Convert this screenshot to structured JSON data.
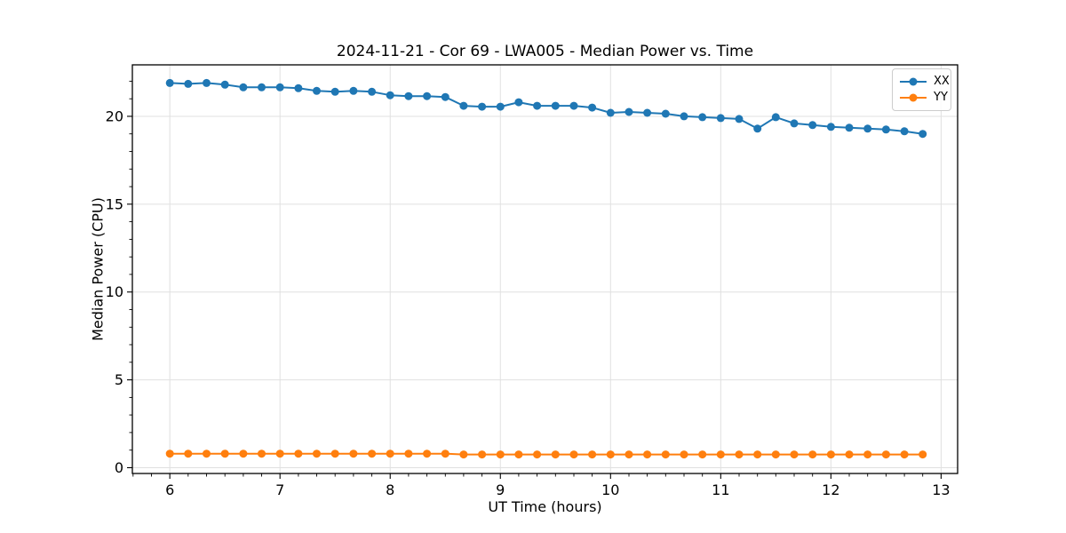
{
  "window": {
    "background": "#ffffff"
  },
  "chart_data": {
    "type": "line",
    "title": "2024-11-21 - Cor 69 - LWA005 - Median Power vs. Time",
    "xlabel": "UT Time (hours)",
    "ylabel": "Median Power (CPU)",
    "xlim": [
      5.66,
      13.15
    ],
    "ylim": [
      -0.33,
      22.93
    ],
    "xticks": [
      6,
      7,
      8,
      9,
      10,
      11,
      12,
      13
    ],
    "yticks": [
      0,
      5,
      10,
      15,
      20
    ],
    "minor_x_step": 0.166667,
    "minor_y_step": 1,
    "grid": true,
    "grid_color": "#e0e0e0",
    "legend_position": "upper right",
    "x": [
      6.0,
      6.1667,
      6.3333,
      6.5,
      6.6667,
      6.8333,
      7.0,
      7.1667,
      7.3333,
      7.5,
      7.6667,
      7.8333,
      8.0,
      8.1667,
      8.3333,
      8.5,
      8.6667,
      8.8333,
      9.0,
      9.1667,
      9.3333,
      9.5,
      9.6667,
      9.8333,
      10.0,
      10.1667,
      10.3333,
      10.5,
      10.6667,
      10.8333,
      11.0,
      11.1667,
      11.3333,
      11.5,
      11.6667,
      11.8333,
      12.0,
      12.1667,
      12.3333,
      12.5,
      12.6667,
      12.8333
    ],
    "series": [
      {
        "name": "XX",
        "color": "#1f77b4",
        "values": [
          21.9,
          21.85,
          21.9,
          21.8,
          21.65,
          21.65,
          21.65,
          21.6,
          21.45,
          21.4,
          21.45,
          21.4,
          21.2,
          21.15,
          21.15,
          21.1,
          20.6,
          20.55,
          20.55,
          20.8,
          20.6,
          20.6,
          20.6,
          20.5,
          20.2,
          20.25,
          20.2,
          20.15,
          20.0,
          19.95,
          19.9,
          19.85,
          19.3,
          19.95,
          19.6,
          19.5,
          19.4,
          19.35,
          19.3,
          19.25,
          19.15,
          19.0
        ]
      },
      {
        "name": "YY",
        "color": "#ff7f0e",
        "values": [
          0.8,
          0.8,
          0.8,
          0.8,
          0.8,
          0.8,
          0.8,
          0.8,
          0.8,
          0.8,
          0.8,
          0.8,
          0.8,
          0.8,
          0.8,
          0.8,
          0.75,
          0.75,
          0.75,
          0.75,
          0.75,
          0.75,
          0.75,
          0.75,
          0.75,
          0.75,
          0.75,
          0.75,
          0.75,
          0.75,
          0.75,
          0.75,
          0.75,
          0.75,
          0.75,
          0.75,
          0.75,
          0.75,
          0.75,
          0.75,
          0.75,
          0.75
        ]
      }
    ]
  }
}
